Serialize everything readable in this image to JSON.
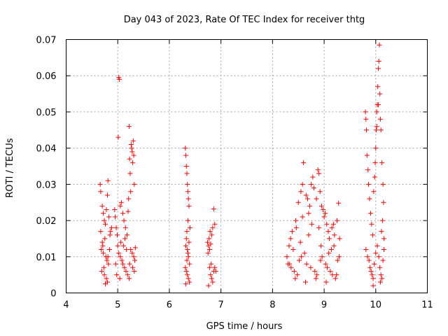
{
  "chart_data": {
    "type": "scatter",
    "title": "Day 043 of 2023, Rate Of TEC Index for receiver thtg",
    "xlabel": "GPS time / hours",
    "ylabel": "ROTI / TECUs",
    "xlim": [
      4,
      11
    ],
    "ylim": [
      0,
      0.07
    ],
    "x_ticks": [
      4,
      5,
      6,
      7,
      8,
      9,
      10,
      11
    ],
    "y_ticks": [
      0,
      0.01,
      0.02,
      0.03,
      0.04,
      0.05,
      0.06,
      0.07
    ],
    "x_tick_labels": [
      "4",
      "5",
      "6",
      "7",
      "8",
      "9",
      "10",
      "11"
    ],
    "y_tick_labels": [
      "0",
      "0.01",
      "0.02",
      "0.03",
      "0.04",
      "0.05",
      "0.06",
      "0.07"
    ],
    "grid": true,
    "marker": "+",
    "marker_color": "#ff0000",
    "series": [
      {
        "name": "ROTI",
        "points": [
          [
            4.66,
            0.03
          ],
          [
            4.67,
            0.028
          ],
          [
            4.7,
            0.024
          ],
          [
            4.72,
            0.022
          ],
          [
            4.74,
            0.02
          ],
          [
            4.76,
            0.019
          ],
          [
            4.78,
            0.023
          ],
          [
            4.8,
            0.027
          ],
          [
            4.81,
            0.031
          ],
          [
            4.83,
            0.021
          ],
          [
            4.85,
            0.016
          ],
          [
            4.75,
            0.015
          ],
          [
            4.7,
            0.014
          ],
          [
            4.68,
            0.012
          ],
          [
            4.72,
            0.011
          ],
          [
            4.77,
            0.01
          ],
          [
            4.79,
            0.009
          ],
          [
            4.82,
            0.008
          ],
          [
            4.73,
            0.007
          ],
          [
            4.69,
            0.006
          ],
          [
            4.74,
            0.005
          ],
          [
            4.78,
            0.004
          ],
          [
            4.8,
            0.003
          ],
          [
            4.76,
            0.0025
          ],
          [
            4.71,
            0.013
          ],
          [
            4.84,
            0.012
          ],
          [
            4.86,
            0.017
          ],
          [
            4.88,
            0.018
          ],
          [
            4.67,
            0.017
          ],
          [
            4.81,
            0.01
          ],
          [
            4.94,
            0.023
          ],
          [
            4.95,
            0.021
          ],
          [
            4.97,
            0.018
          ],
          [
            4.99,
            0.016
          ],
          [
            5.01,
            0.043
          ],
          [
            5.02,
            0.0595
          ],
          [
            5.03,
            0.059
          ],
          [
            5.05,
            0.024
          ],
          [
            5.07,
            0.025
          ],
          [
            5.1,
            0.022
          ],
          [
            5.12,
            0.02
          ],
          [
            5.15,
            0.018
          ],
          [
            5.18,
            0.016
          ],
          [
            5.2,
            0.0225
          ],
          [
            5.21,
            0.026
          ],
          [
            5.22,
            0.046
          ],
          [
            5.23,
            0.037
          ],
          [
            5.24,
            0.033
          ],
          [
            5.25,
            0.028
          ],
          [
            5.26,
            0.041
          ],
          [
            5.27,
            0.04
          ],
          [
            5.28,
            0.039
          ],
          [
            5.29,
            0.036
          ],
          [
            5.3,
            0.042
          ],
          [
            5.31,
            0.038
          ],
          [
            5.32,
            0.03
          ],
          [
            5.34,
            0.0125
          ],
          [
            5.0,
            0.013
          ],
          [
            5.02,
            0.011
          ],
          [
            5.05,
            0.01
          ],
          [
            5.08,
            0.009
          ],
          [
            5.1,
            0.008
          ],
          [
            5.13,
            0.007
          ],
          [
            5.16,
            0.006
          ],
          [
            5.19,
            0.005
          ],
          [
            5.22,
            0.004
          ],
          [
            5.25,
            0.012
          ],
          [
            5.28,
            0.011
          ],
          [
            5.31,
            0.01
          ],
          [
            5.33,
            0.009
          ],
          [
            4.96,
            0.008
          ],
          [
            4.98,
            0.005
          ],
          [
            5.04,
            0.004
          ],
          [
            5.11,
            0.013
          ],
          [
            5.17,
            0.012
          ],
          [
            5.23,
            0.008
          ],
          [
            5.29,
            0.007
          ],
          [
            5.32,
            0.006
          ],
          [
            5.06,
            0.014
          ],
          [
            5.14,
            0.015
          ],
          [
            6.31,
            0.04
          ],
          [
            6.32,
            0.038
          ],
          [
            6.33,
            0.035
          ],
          [
            6.34,
            0.033
          ],
          [
            6.35,
            0.03
          ],
          [
            6.36,
            0.028
          ],
          [
            6.37,
            0.026
          ],
          [
            6.38,
            0.024
          ],
          [
            6.36,
            0.02
          ],
          [
            6.34,
            0.017
          ],
          [
            6.33,
            0.015
          ],
          [
            6.32,
            0.013
          ],
          [
            6.35,
            0.012
          ],
          [
            6.37,
            0.01
          ],
          [
            6.39,
            0.008
          ],
          [
            6.31,
            0.007
          ],
          [
            6.33,
            0.006
          ],
          [
            6.35,
            0.005
          ],
          [
            6.37,
            0.004
          ],
          [
            6.39,
            0.003
          ],
          [
            6.32,
            0.0025
          ],
          [
            6.34,
            0.009
          ],
          [
            6.36,
            0.011
          ],
          [
            6.38,
            0.014
          ],
          [
            6.4,
            0.018
          ],
          [
            6.74,
            0.014
          ],
          [
            6.76,
            0.013
          ],
          [
            6.78,
            0.012
          ],
          [
            6.8,
            0.0135
          ],
          [
            6.82,
            0.016
          ],
          [
            6.84,
            0.018
          ],
          [
            6.86,
            0.0232
          ],
          [
            6.88,
            0.019
          ],
          [
            6.79,
            0.017
          ],
          [
            6.77,
            0.015
          ],
          [
            6.75,
            0.011
          ],
          [
            6.78,
            0.007
          ],
          [
            6.8,
            0.005
          ],
          [
            6.82,
            0.004
          ],
          [
            6.84,
            0.003
          ],
          [
            6.86,
            0.006
          ],
          [
            6.88,
            0.007
          ],
          [
            6.9,
            0.006
          ],
          [
            6.76,
            0.002
          ],
          [
            6.81,
            0.008
          ],
          [
            8.28,
            0.01
          ],
          [
            8.3,
            0.008
          ],
          [
            8.32,
            0.013
          ],
          [
            8.35,
            0.015
          ],
          [
            8.38,
            0.017
          ],
          [
            8.4,
            0.012
          ],
          [
            8.45,
            0.02
          ],
          [
            8.5,
            0.025
          ],
          [
            8.55,
            0.028
          ],
          [
            8.58,
            0.03
          ],
          [
            8.6,
            0.036
          ],
          [
            8.65,
            0.027
          ],
          [
            8.68,
            0.026
          ],
          [
            8.7,
            0.022
          ],
          [
            8.72,
            0.024
          ],
          [
            8.75,
            0.03
          ],
          [
            8.78,
            0.032
          ],
          [
            8.8,
            0.029
          ],
          [
            8.85,
            0.026
          ],
          [
            8.88,
            0.034
          ],
          [
            8.9,
            0.033
          ],
          [
            8.92,
            0.028
          ],
          [
            8.95,
            0.024
          ],
          [
            8.98,
            0.023
          ],
          [
            9.0,
            0.021
          ],
          [
            9.02,
            0.022
          ],
          [
            9.05,
            0.019
          ],
          [
            9.08,
            0.017
          ],
          [
            9.1,
            0.015
          ],
          [
            9.15,
            0.018
          ],
          [
            9.18,
            0.019
          ],
          [
            9.2,
            0.016
          ],
          [
            9.25,
            0.02
          ],
          [
            9.28,
            0.0248
          ],
          [
            9.3,
            0.015
          ],
          [
            8.33,
            0.008
          ],
          [
            8.36,
            0.007
          ],
          [
            8.42,
            0.006
          ],
          [
            8.48,
            0.005
          ],
          [
            8.52,
            0.009
          ],
          [
            8.56,
            0.01
          ],
          [
            8.62,
            0.011
          ],
          [
            8.66,
            0.008
          ],
          [
            8.74,
            0.007
          ],
          [
            8.82,
            0.006
          ],
          [
            8.86,
            0.005
          ],
          [
            8.93,
            0.009
          ],
          [
            8.96,
            0.01
          ],
          [
            9.03,
            0.008
          ],
          [
            9.06,
            0.007
          ],
          [
            9.12,
            0.006
          ],
          [
            9.16,
            0.005
          ],
          [
            9.22,
            0.004
          ],
          [
            9.26,
            0.009
          ],
          [
            9.29,
            0.01
          ],
          [
            8.44,
            0.004
          ],
          [
            8.64,
            0.003
          ],
          [
            8.84,
            0.004
          ],
          [
            9.04,
            0.003
          ],
          [
            9.24,
            0.005
          ],
          [
            8.54,
            0.014
          ],
          [
            8.7,
            0.016
          ],
          [
            8.94,
            0.013
          ],
          [
            9.14,
            0.012
          ],
          [
            8.46,
            0.018
          ],
          [
            8.76,
            0.019
          ],
          [
            9.09,
            0.011
          ],
          [
            8.58,
            0.021
          ],
          [
            8.9,
            0.018
          ],
          [
            9.19,
            0.013
          ],
          [
            9.8,
            0.05
          ],
          [
            9.81,
            0.048
          ],
          [
            9.82,
            0.045
          ],
          [
            9.83,
            0.038
          ],
          [
            9.85,
            0.034
          ],
          [
            9.86,
            0.03
          ],
          [
            9.88,
            0.026
          ],
          [
            9.9,
            0.022
          ],
          [
            9.92,
            0.019
          ],
          [
            9.94,
            0.016
          ],
          [
            9.96,
            0.028
          ],
          [
            9.98,
            0.032
          ],
          [
            9.99,
            0.036
          ],
          [
            10.0,
            0.04
          ],
          [
            10.01,
            0.045
          ],
          [
            10.02,
            0.05
          ],
          [
            10.03,
            0.052
          ],
          [
            10.04,
            0.057
          ],
          [
            10.05,
            0.062
          ],
          [
            10.06,
            0.064
          ],
          [
            10.07,
            0.0685
          ],
          [
            10.08,
            0.055
          ],
          [
            10.09,
            0.048
          ],
          [
            10.1,
            0.045
          ],
          [
            10.12,
            0.036
          ],
          [
            10.14,
            0.03
          ],
          [
            10.15,
            0.025
          ],
          [
            10.13,
            0.02
          ],
          [
            10.11,
            0.017
          ],
          [
            10.16,
            0.015
          ],
          [
            9.81,
            0.012
          ],
          [
            9.84,
            0.01
          ],
          [
            9.87,
            0.009
          ],
          [
            9.89,
            0.007
          ],
          [
            9.91,
            0.006
          ],
          [
            9.93,
            0.005
          ],
          [
            9.95,
            0.004
          ],
          [
            9.97,
            0.008
          ],
          [
            10.0,
            0.011
          ],
          [
            10.03,
            0.013
          ],
          [
            10.06,
            0.01
          ],
          [
            10.08,
            0.007
          ],
          [
            10.1,
            0.005
          ],
          [
            10.12,
            0.004
          ],
          [
            10.14,
            0.009
          ],
          [
            10.16,
            0.012
          ],
          [
            9.95,
            0.002
          ],
          [
            10.09,
            0.003
          ],
          [
            10.05,
            0.052
          ],
          [
            10.02,
            0.046
          ]
        ]
      }
    ]
  }
}
